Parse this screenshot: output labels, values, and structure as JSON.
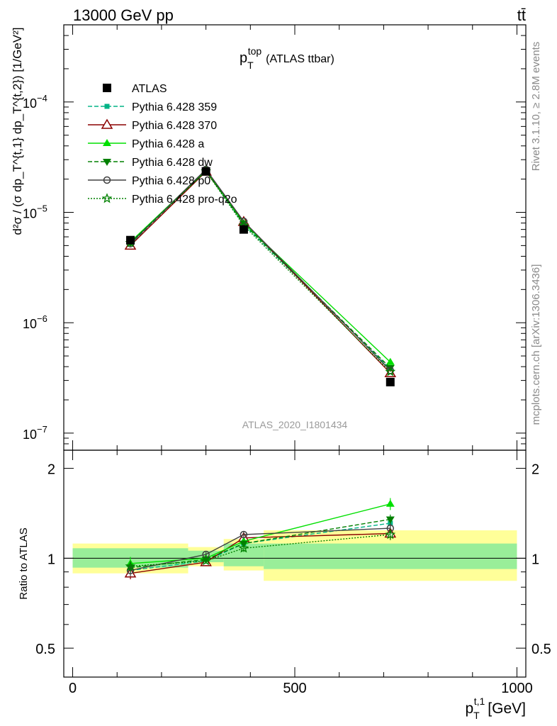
{
  "header": {
    "energy_label": "13000 GeV pp",
    "process_label": "tt̄"
  },
  "plot": {
    "title_main": "p",
    "title_sub": "T",
    "title_sup": "top",
    "title_suffix": "(ATLAS ttbar)",
    "analysis_label": "ATLAS_2020_I1801434",
    "side_text_rivet": "Rivet 3.1.10, ≥ 2.8M events",
    "side_text_url": "mcplots.cern.ch [arXiv:1306.3436]",
    "ylabel_upper": "d²σ / (σ dp_T^{t,1} dp_T^{t,2}) [1/GeV²]",
    "ylabel_lower": "Ratio to ATLAS",
    "xlabel_main": "p",
    "xlabel_sub": "T",
    "xlabel_sup": "t,1",
    "xlabel_unit": "[GeV]"
  },
  "ticks": {
    "upper_y": [
      {
        "base": "10",
        "exp": "−4",
        "value": 0.0001
      },
      {
        "base": "10",
        "exp": "−5",
        "value": 1e-05
      },
      {
        "base": "10",
        "exp": "−6",
        "value": 1e-06
      },
      {
        "base": "10",
        "exp": "−7",
        "value": 1e-07
      }
    ],
    "lower_y": [
      "2",
      "1",
      "0.5"
    ],
    "lower_y_values": [
      2,
      1,
      0.5
    ],
    "x": [
      "0",
      "500",
      "1000"
    ],
    "x_values": [
      0,
      500,
      1000
    ]
  },
  "legend": [
    {
      "label": "ATLAS",
      "color": "#000000",
      "marker": "square",
      "dash": "none"
    },
    {
      "label": "Pythia 6.428 359",
      "color": "#00b386",
      "marker": "small-square",
      "dash": "dashed"
    },
    {
      "label": "Pythia 6.428 370",
      "color": "#8b0000",
      "marker": "open-triangle",
      "dash": "solid"
    },
    {
      "label": "Pythia 6.428 a",
      "color": "#00e000",
      "marker": "triangle",
      "dash": "solid"
    },
    {
      "label": "Pythia 6.428 dw",
      "color": "#008000",
      "marker": "down-triangle",
      "dash": "dashed"
    },
    {
      "label": "Pythia 6.428 p0",
      "color": "#404040",
      "marker": "open-circle",
      "dash": "solid"
    },
    {
      "label": "Pythia 6.428 pro-q2o",
      "color": "#008000",
      "marker": "star",
      "dash": "dotted"
    }
  ],
  "chart_data": {
    "type": "line",
    "x": [
      130,
      300,
      385,
      715
    ],
    "x_bins": [
      [
        0,
        260
      ],
      [
        260,
        340
      ],
      [
        340,
        430
      ],
      [
        430,
        1000
      ]
    ],
    "xlim": [
      -20,
      1020
    ],
    "ylim_upper": [
      7e-08,
      0.0005
    ],
    "yscale_upper": "log",
    "ylim_lower": [
      0.4,
      2.3
    ],
    "yscale_lower": "log",
    "legend_position": "top-left",
    "data": {
      "name": "ATLAS",
      "values": [
        5.6e-06,
        2.35e-05,
        7e-06,
        2.9e-07
      ],
      "stat_band": [
        [
          0.93,
          1.08
        ],
        [
          0.97,
          1.06
        ],
        [
          0.94,
          1.12
        ],
        [
          0.92,
          1.12
        ]
      ],
      "total_band": [
        [
          0.89,
          1.12
        ],
        [
          0.94,
          1.09
        ],
        [
          0.91,
          1.16
        ],
        [
          0.84,
          1.24
        ]
      ]
    },
    "series": [
      {
        "name": "Pythia 6.428 359",
        "values": [
          5.1e-06,
          2.38e-05,
          7.8e-06,
          3.8e-07
        ],
        "ratio": [
          0.91,
          0.98,
          1.12,
          1.31
        ],
        "ratio_err": [
          0.04,
          0.02,
          0.03,
          0.05
        ]
      },
      {
        "name": "Pythia 6.428 370",
        "values": [
          5e-06,
          2.34e-05,
          8.2e-06,
          3.5e-07
        ],
        "ratio": [
          0.89,
          0.97,
          1.17,
          1.21
        ],
        "ratio_err": [
          0.04,
          0.02,
          0.03,
          0.05
        ]
      },
      {
        "name": "Pythia 6.428 a",
        "values": [
          5.4e-06,
          2.4e-05,
          8e-06,
          4.4e-07
        ],
        "ratio": [
          0.96,
          1.0,
          1.14,
          1.52
        ],
        "ratio_err": [
          0.05,
          0.02,
          0.03,
          0.07
        ]
      },
      {
        "name": "Pythia 6.428 dw",
        "values": [
          5.3e-06,
          2.38e-05,
          7.9e-06,
          3.9e-07
        ],
        "ratio": [
          0.93,
          0.99,
          1.12,
          1.35
        ],
        "ratio_err": [
          0.04,
          0.02,
          0.03,
          0.05
        ]
      },
      {
        "name": "Pythia 6.428 p0",
        "values": [
          5.2e-06,
          2.45e-05,
          8.3e-06,
          3.7e-07
        ],
        "ratio": [
          0.91,
          1.03,
          1.2,
          1.26
        ],
        "ratio_err": [
          0.04,
          0.02,
          0.03,
          0.05
        ]
      },
      {
        "name": "Pythia 6.428 pro-q2o",
        "values": [
          5.3e-06,
          2.36e-05,
          7.6e-06,
          3.6e-07
        ],
        "ratio": [
          0.94,
          0.98,
          1.08,
          1.2
        ],
        "ratio_err": [
          0.04,
          0.02,
          0.03,
          0.05
        ]
      }
    ]
  }
}
